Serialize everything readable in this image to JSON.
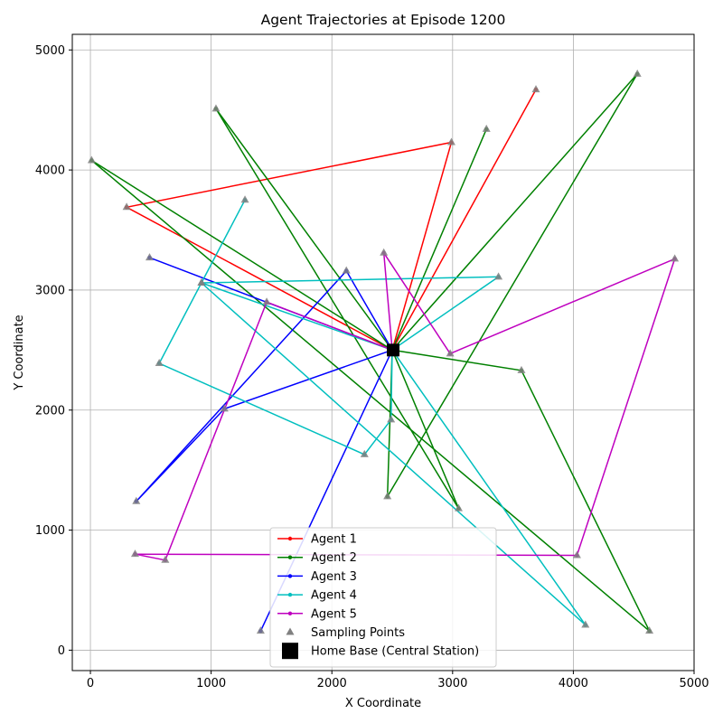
{
  "chart_data": {
    "type": "line",
    "title": "Agent Trajectories at Episode 1200",
    "xlabel": "X Coordinate",
    "ylabel": "Y Coordinate",
    "xlim": [
      -150,
      5000
    ],
    "ylim": [
      -170,
      5130
    ],
    "xticks": [
      0,
      1000,
      2000,
      3000,
      4000,
      5000
    ],
    "yticks": [
      0,
      1000,
      2000,
      3000,
      4000,
      5000
    ],
    "grid": true,
    "legend_position": "bottom-center",
    "home_base": {
      "name": "Home Base (Central Station)",
      "x": 2500,
      "y": 2500,
      "color": "#000000"
    },
    "sampling_points_label": "Sampling Points",
    "sampling_points_color": "#808080",
    "series": [
      {
        "name": "Agent 1",
        "color": "#ff0000",
        "points": [
          [
            2500,
            2500
          ],
          [
            3690,
            4670
          ],
          [
            2500,
            2500
          ],
          [
            300,
            3690
          ],
          [
            2990,
            4230
          ],
          [
            2500,
            2500
          ]
        ]
      },
      {
        "name": "Agent 2",
        "color": "#008000",
        "points": [
          [
            2500,
            2500
          ],
          [
            4530,
            4800
          ],
          [
            2460,
            1280
          ],
          [
            2500,
            2500
          ],
          [
            3050,
            1180
          ],
          [
            1040,
            4510
          ],
          [
            2500,
            2500
          ],
          [
            3280,
            4340
          ],
          [
            2500,
            2500
          ],
          [
            3570,
            2330
          ],
          [
            4630,
            160
          ],
          [
            10,
            4080
          ],
          [
            2500,
            2500
          ]
        ]
      },
      {
        "name": "Agent 3",
        "color": "#0000ff",
        "points": [
          [
            2500,
            2500
          ],
          [
            1410,
            160
          ],
          [
            2500,
            2500
          ],
          [
            1110,
            2010
          ],
          [
            380,
            1240
          ],
          [
            2120,
            3160
          ],
          [
            2500,
            2500
          ],
          [
            490,
            3270
          ],
          [
            2500,
            2500
          ]
        ]
      },
      {
        "name": "Agent 4",
        "color": "#00bfbf",
        "points": [
          [
            2500,
            2500
          ],
          [
            2490,
            1920
          ],
          [
            2270,
            1630
          ],
          [
            570,
            2390
          ],
          [
            1280,
            3750
          ],
          [
            920,
            3060
          ],
          [
            3380,
            3110
          ],
          [
            2500,
            2500
          ],
          [
            920,
            3060
          ],
          [
            4100,
            210
          ],
          [
            2500,
            2500
          ]
        ]
      },
      {
        "name": "Agent 5",
        "color": "#bf00bf",
        "points": [
          [
            2500,
            2500
          ],
          [
            2430,
            3310
          ],
          [
            2980,
            2470
          ],
          [
            4840,
            3260
          ],
          [
            4030,
            790
          ],
          [
            370,
            800
          ],
          [
            620,
            750
          ],
          [
            1460,
            2900
          ],
          [
            2500,
            2500
          ]
        ]
      }
    ]
  }
}
